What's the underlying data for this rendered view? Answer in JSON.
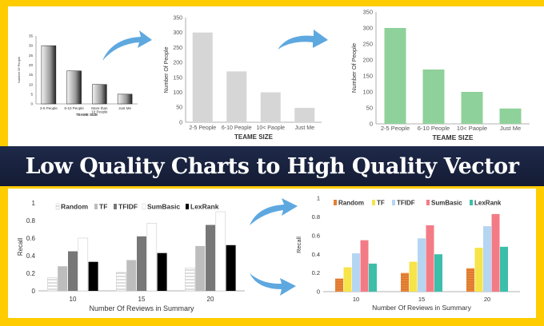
{
  "banner": {
    "title": "Low Quality Charts to High Quality Vector"
  },
  "colors": {
    "border": "#FFCC00",
    "banner": "#1b2440",
    "arrow": "#5ea8e0"
  },
  "chart_data": [
    {
      "type": "bar",
      "style": "low-quality 3D grayscale",
      "categories": [
        "2-5 People",
        "6-10 People",
        "More than 10 People",
        "Just Me"
      ],
      "values": [
        30,
        17,
        10,
        5
      ],
      "xlabel": "TEAME SIZE",
      "ylabel": "Number Of People",
      "ylim": [
        0,
        35
      ],
      "yticks": [
        0,
        5,
        10,
        15,
        20,
        25,
        30,
        35
      ],
      "grid": false,
      "colors": [
        "#555555"
      ]
    },
    {
      "type": "bar",
      "style": "flat gray",
      "categories": [
        "2-5 People",
        "6-10 People",
        "10< Paople",
        "Just Me"
      ],
      "values": [
        300,
        170,
        100,
        48
      ],
      "xlabel": "TEAME SIZE",
      "ylabel": "Number Of People",
      "ylim": [
        0,
        350
      ],
      "yticks": [
        0,
        50,
        100,
        150,
        200,
        250,
        300,
        350
      ],
      "grid": false,
      "colors": [
        "#d6d6d6"
      ]
    },
    {
      "type": "bar",
      "style": "flat green",
      "categories": [
        "2-5 People",
        "6-10 People",
        "10< Paople",
        "Just Me"
      ],
      "values": [
        300,
        170,
        100,
        48
      ],
      "xlabel": "TEAME SIZE",
      "ylabel": "Number Of People",
      "ylim": [
        0,
        350
      ],
      "yticks": [
        0,
        50,
        100,
        150,
        200,
        250,
        300,
        350
      ],
      "grid": false,
      "colors": [
        "#8fd19a"
      ]
    },
    {
      "type": "bar",
      "style": "grayscale grouped",
      "categories": [
        "10",
        "15",
        "20"
      ],
      "series": [
        {
          "name": "Random",
          "values": [
            0.15,
            0.21,
            0.26
          ],
          "color": "#ffffff",
          "pattern": "hlines-gray"
        },
        {
          "name": "TF",
          "values": [
            0.28,
            0.35,
            0.51
          ],
          "color": "#bdbdbd"
        },
        {
          "name": "TFIDF",
          "values": [
            0.45,
            0.62,
            0.75
          ],
          "color": "#777777"
        },
        {
          "name": "SumBasic",
          "values": [
            0.6,
            0.77,
            0.9
          ],
          "color": "#ffffff"
        },
        {
          "name": "LexRank",
          "values": [
            0.33,
            0.43,
            0.52
          ],
          "color": "#000000"
        }
      ],
      "xlabel": "Number Of Reviews in Summary",
      "ylabel": "Recall",
      "ylim": [
        0,
        1
      ],
      "yticks": [
        "0",
        "0.2",
        "0.4",
        "0.6",
        "0.8",
        "1"
      ],
      "grid": false,
      "legend": "top"
    },
    {
      "type": "bar",
      "style": "colored grouped",
      "categories": [
        "10",
        "15",
        "20"
      ],
      "series": [
        {
          "name": "Random",
          "values": [
            0.14,
            0.2,
            0.25
          ],
          "color": "#f08a3c",
          "pattern": "hlines-dark"
        },
        {
          "name": "TF",
          "values": [
            0.26,
            0.32,
            0.47
          ],
          "color": "#f7e34a"
        },
        {
          "name": "TFIDF",
          "values": [
            0.41,
            0.57,
            0.7
          ],
          "color": "#b5d6f2"
        },
        {
          "name": "SumBasic",
          "values": [
            0.55,
            0.71,
            0.83
          ],
          "color": "#f37b85"
        },
        {
          "name": "LexRank",
          "values": [
            0.3,
            0.4,
            0.48
          ],
          "color": "#3bbfaa"
        }
      ],
      "xlabel": "Number Of Reviews in Summary",
      "ylabel": "Recall",
      "ylim": [
        0,
        1
      ],
      "yticks": [
        "0",
        "0.2",
        "0.4",
        "0.6",
        "0.8",
        "1"
      ],
      "grid": false,
      "legend": "top"
    }
  ]
}
